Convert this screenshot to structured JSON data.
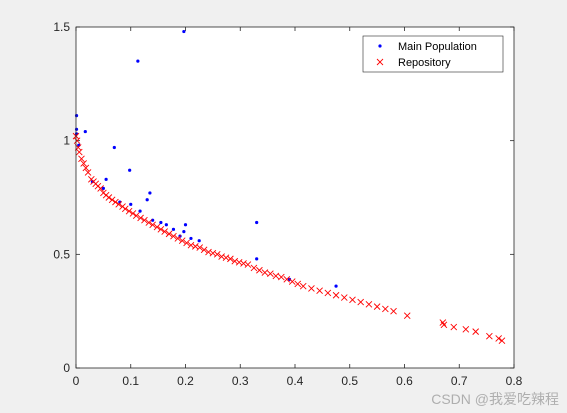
{
  "chart_data": {
    "type": "scatter",
    "title": "",
    "xlabel": "",
    "ylabel": "",
    "xlim": [
      0,
      0.8
    ],
    "ylim": [
      0,
      1.5
    ],
    "xticks": [
      0,
      0.1,
      0.2,
      0.3,
      0.4,
      0.5,
      0.6,
      0.7,
      0.8
    ],
    "xtick_labels": [
      "0",
      "0.1",
      "0.2",
      "0.3",
      "0.4",
      "0.5",
      "0.6",
      "0.7",
      "0.8"
    ],
    "yticks": [
      0,
      0.5,
      1,
      1.5
    ],
    "ytick_labels": [
      "0",
      "0.5",
      "1",
      "1.5"
    ],
    "grid": false,
    "legend_position": "top-right",
    "series": [
      {
        "name": "Main Population",
        "marker": "dot",
        "color": "#0000ff",
        "points": [
          [
            0.197,
            1.48
          ],
          [
            0.113,
            1.35
          ],
          [
            0.001,
            1.11
          ],
          [
            0.001,
            1.05
          ],
          [
            0.001,
            1.03
          ],
          [
            0.017,
            1.04
          ],
          [
            0.07,
            0.97
          ],
          [
            0.098,
            0.87
          ],
          [
            0.055,
            0.83
          ],
          [
            0.135,
            0.77
          ],
          [
            0.13,
            0.74
          ],
          [
            0.1,
            0.72
          ],
          [
            0.117,
            0.69
          ],
          [
            0.155,
            0.64
          ],
          [
            0.165,
            0.63
          ],
          [
            0.178,
            0.61
          ],
          [
            0.2,
            0.63
          ],
          [
            0.197,
            0.6
          ],
          [
            0.19,
            0.58
          ],
          [
            0.21,
            0.57
          ],
          [
            0.225,
            0.56
          ],
          [
            0.33,
            0.64
          ],
          [
            0.33,
            0.48
          ],
          [
            0.475,
            0.36
          ],
          [
            0.39,
            0.39
          ],
          [
            0.005,
            0.98
          ],
          [
            0.03,
            0.82
          ],
          [
            0.05,
            0.79
          ],
          [
            0.08,
            0.73
          ],
          [
            0.14,
            0.65
          ]
        ]
      },
      {
        "name": "Repository",
        "marker": "x",
        "color": "#ff0000",
        "points": [
          [
            0.0,
            1.02
          ],
          [
            0.002,
            1.0
          ],
          [
            0.004,
            0.97
          ],
          [
            0.006,
            0.95
          ],
          [
            0.01,
            0.92
          ],
          [
            0.014,
            0.9
          ],
          [
            0.018,
            0.88
          ],
          [
            0.022,
            0.86
          ],
          [
            0.028,
            0.83
          ],
          [
            0.032,
            0.82
          ],
          [
            0.036,
            0.81
          ],
          [
            0.04,
            0.8
          ],
          [
            0.045,
            0.79
          ],
          [
            0.05,
            0.77
          ],
          [
            0.055,
            0.76
          ],
          [
            0.06,
            0.75
          ],
          [
            0.066,
            0.74
          ],
          [
            0.072,
            0.73
          ],
          [
            0.078,
            0.72
          ],
          [
            0.085,
            0.71
          ],
          [
            0.09,
            0.7
          ],
          [
            0.097,
            0.69
          ],
          [
            0.104,
            0.68
          ],
          [
            0.11,
            0.67
          ],
          [
            0.118,
            0.66
          ],
          [
            0.125,
            0.65
          ],
          [
            0.133,
            0.64
          ],
          [
            0.14,
            0.63
          ],
          [
            0.148,
            0.62
          ],
          [
            0.155,
            0.61
          ],
          [
            0.162,
            0.6
          ],
          [
            0.17,
            0.59
          ],
          [
            0.178,
            0.58
          ],
          [
            0.186,
            0.57
          ],
          [
            0.194,
            0.56
          ],
          [
            0.202,
            0.55
          ],
          [
            0.21,
            0.54
          ],
          [
            0.218,
            0.535
          ],
          [
            0.226,
            0.53
          ],
          [
            0.234,
            0.52
          ],
          [
            0.242,
            0.51
          ],
          [
            0.25,
            0.505
          ],
          [
            0.258,
            0.5
          ],
          [
            0.266,
            0.49
          ],
          [
            0.274,
            0.485
          ],
          [
            0.282,
            0.48
          ],
          [
            0.29,
            0.47
          ],
          [
            0.298,
            0.465
          ],
          [
            0.306,
            0.46
          ],
          [
            0.314,
            0.455
          ],
          [
            0.325,
            0.44
          ],
          [
            0.335,
            0.43
          ],
          [
            0.345,
            0.42
          ],
          [
            0.355,
            0.415
          ],
          [
            0.365,
            0.405
          ],
          [
            0.375,
            0.4
          ],
          [
            0.385,
            0.39
          ],
          [
            0.395,
            0.38
          ],
          [
            0.405,
            0.37
          ],
          [
            0.415,
            0.36
          ],
          [
            0.43,
            0.35
          ],
          [
            0.445,
            0.34
          ],
          [
            0.46,
            0.33
          ],
          [
            0.475,
            0.32
          ],
          [
            0.49,
            0.31
          ],
          [
            0.505,
            0.3
          ],
          [
            0.52,
            0.29
          ],
          [
            0.535,
            0.28
          ],
          [
            0.55,
            0.27
          ],
          [
            0.565,
            0.26
          ],
          [
            0.58,
            0.25
          ],
          [
            0.605,
            0.23
          ],
          [
            0.67,
            0.2
          ],
          [
            0.672,
            0.19
          ],
          [
            0.69,
            0.18
          ],
          [
            0.712,
            0.17
          ],
          [
            0.73,
            0.16
          ],
          [
            0.755,
            0.14
          ],
          [
            0.772,
            0.13
          ],
          [
            0.778,
            0.12
          ]
        ]
      }
    ]
  },
  "watermark": "CSDN @我爱吃辣程"
}
